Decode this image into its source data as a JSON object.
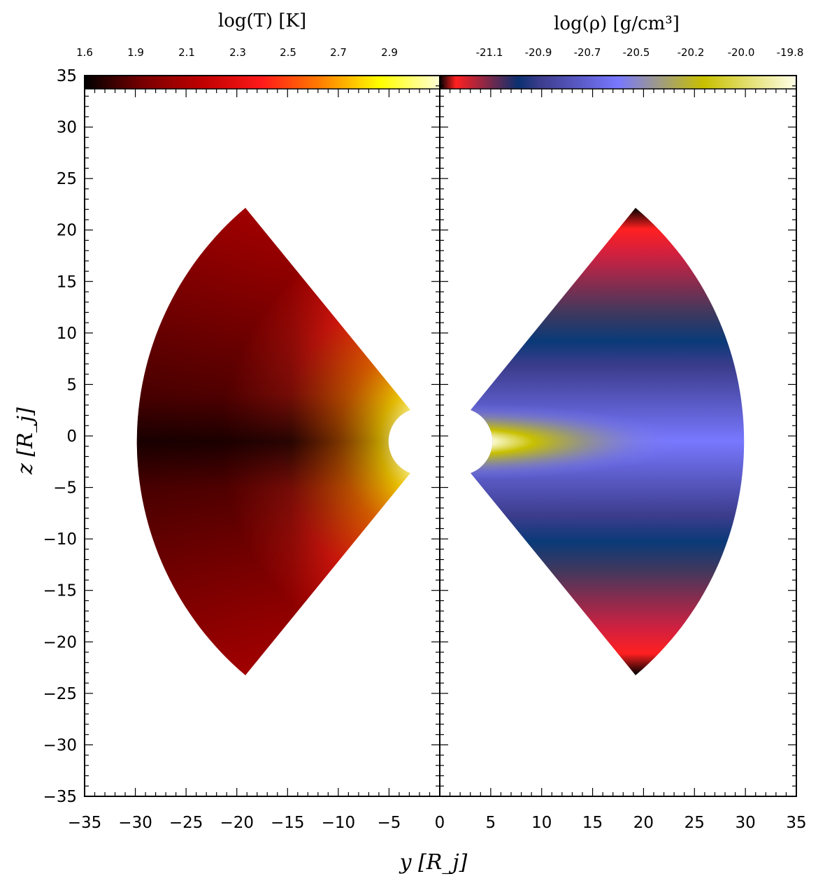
{
  "chart_data": [
    {
      "type": "heatmap",
      "panel": "left",
      "quantity_title": "log(T) [K]",
      "colorbar": {
        "tick_labels": [
          "1.6",
          "1.9",
          "2.1",
          "2.3",
          "2.5",
          "2.7",
          "2.9"
        ],
        "colors": [
          "#000000",
          "#7a0000",
          "#c00000",
          "#ff1a1a",
          "#ff8000",
          "#ffff00",
          "#ffffd8"
        ]
      },
      "xlim": [
        -35,
        0
      ],
      "ylim": [
        -35,
        35
      ],
      "xlabel": "y [R_j]",
      "ylabel": "z [R_j]",
      "x_tick_labels": [
        "−35",
        "−30",
        "−25",
        "−20",
        "−15",
        "−10",
        "−5"
      ],
      "y_tick_labels": [
        "35",
        "30",
        "25",
        "20",
        "15",
        "10",
        "5",
        "0",
        "−5",
        "−10",
        "−15",
        "−20",
        "−25",
        "−30",
        "−35"
      ],
      "domain": {
        "shape": "annular sector",
        "r_inner": 3.3,
        "r_outer": 30,
        "opening_half_angle_deg": 50,
        "center": [
          0,
          0
        ]
      },
      "description_values": {
        "midplane_outer_logT": 1.6,
        "midplane_mid_logT": 1.9,
        "surface_logT": 2.3,
        "inner_edge_logT": 2.9
      }
    },
    {
      "type": "heatmap",
      "panel": "right",
      "quantity_title": "log(ρ) [g/cm³]",
      "colorbar": {
        "tick_labels": [
          "-21.1",
          "-20.9",
          "-20.7",
          "-20.5",
          "-20.2",
          "-20.0",
          "-19.8"
        ],
        "colors": [
          "#000000",
          "#ff2020",
          "#0a3070",
          "#3c3c8c",
          "#7878ff",
          "#c8c000",
          "#ffffe8"
        ]
      },
      "xlim": [
        0,
        35
      ],
      "ylim": [
        -35,
        35
      ],
      "xlabel": "y [R_j]",
      "x_tick_labels": [
        "0",
        "5",
        "10",
        "15",
        "20",
        "25",
        "30",
        "35"
      ],
      "domain": {
        "shape": "annular sector",
        "r_inner": 3.3,
        "r_outer": 30,
        "opening_half_angle_deg": 50,
        "center": [
          0,
          0
        ]
      },
      "description_values": {
        "midplane_inner_logrho": -19.8,
        "bulk_logrho": -20.5,
        "band_logrho": -20.9,
        "surface_logrho": -21.0,
        "tip_logrho": -21.1
      }
    }
  ]
}
